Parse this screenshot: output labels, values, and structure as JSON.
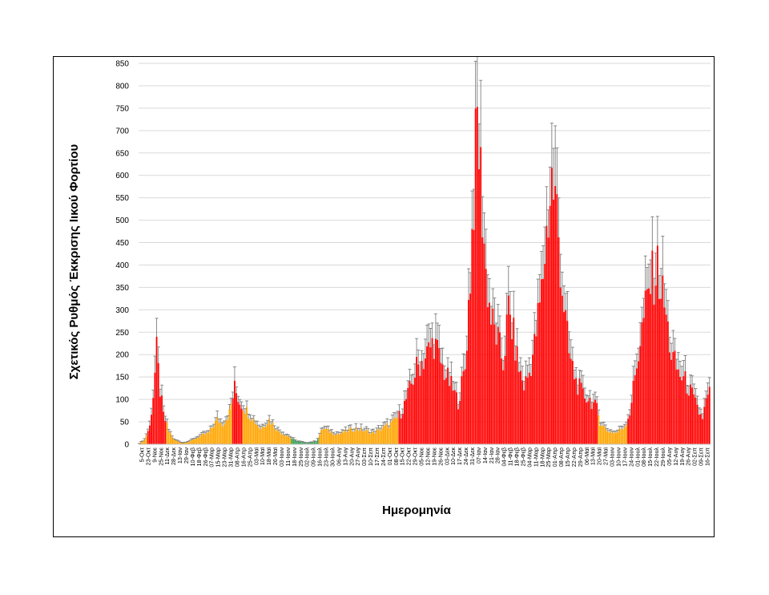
{
  "chart_data": {
    "type": "bar",
    "title": "",
    "ylabel": "Σχετικός Ρυθμός Έκκρισης Ιικού Φορτίου",
    "xlabel": "Ημερομηνία",
    "ylim": [
      0,
      850
    ],
    "y_ticks": [
      0,
      50,
      100,
      150,
      200,
      250,
      300,
      350,
      400,
      450,
      500,
      550,
      600,
      650,
      700,
      750,
      800,
      850
    ],
    "grid": "horizontal",
    "error_bars": true,
    "colors": {
      "red": "#ff0000",
      "orange": "#ffa500",
      "green": "#2e9e4f",
      "error": "#7f7f7f"
    },
    "x_tick_labels": [
      "5-Οκτ",
      "23-Οκτ",
      "9-Νοε",
      "25-Νοε",
      "11-Δεκ",
      "28-Δεκ",
      "13-Ιαν",
      "29-Ιαν",
      "10-Φεβ",
      "18-Φεβ",
      "26-Φεβ",
      "07-Μαρ",
      "15-Μαρ",
      "23-Μαρ",
      "31-Μαρ",
      "08-Απρ",
      "16-Απρ",
      "25-Απρ",
      "03-Μαϊ",
      "10-Μαϊ",
      "18-Μαϊ",
      "26-Μαϊ",
      "03-Ιουν",
      "11-Ιουν",
      "18-Ιουν",
      "25-Ιουν",
      "02-Ιουλ",
      "09-Ιουλ",
      "16-Ιουλ",
      "23-Ιουλ",
      "30-Ιουλ",
      "06-Αυγ",
      "13-Αυγ",
      "20-Αυγ",
      "27-Αυγ",
      "03-Σεπ",
      "10-Σεπ",
      "17-Σεπ",
      "24-Σεπ",
      "01-Οκτ",
      "08-Οκτ",
      "15-Οκτ",
      "22-Οκτ",
      "29-Οκτ",
      "05-Νοε",
      "12-Νοε",
      "19-Νοε",
      "26-Νοε",
      "03-Δεκ",
      "10-Δεκ",
      "17-Δεκ",
      "24-Δεκ",
      "31-Δεκ",
      "07-Ιαν",
      "14-Ιαν",
      "21-Ιαν",
      "28-Ιαν",
      "04-Φεβ",
      "11-Φεβ",
      "18-Φεβ",
      "25-Φεβ",
      "04-Μαρ",
      "11-Μαρ",
      "18-Μαρ",
      "25-Μαρ",
      "01-Απρ",
      "08-Απρ",
      "15-Απρ",
      "22-Απρ",
      "29-Απρ",
      "06-Μαϊ",
      "13-Μαϊ",
      "20-Μαϊ",
      "27-Μαϊ",
      "03-Ιουν",
      "10-Ιουν",
      "17-Ιουν",
      "24-Ιουν",
      "01-Ιουλ",
      "08-Ιουλ",
      "15-Ιουλ",
      "22-Ιουλ",
      "29-Ιουλ",
      "05-Αυγ",
      "12-Αυγ",
      "19-Αυγ",
      "26-Αυγ",
      "02-Σεπ",
      "09-Σεπ",
      "16-Σεπ"
    ],
    "series_profile": [
      {
        "x": 0,
        "y": 2,
        "c": "o"
      },
      {
        "x": 3,
        "y": 10,
        "c": "o"
      },
      {
        "x": 6,
        "y": 40,
        "c": "r"
      },
      {
        "x": 8,
        "y": 110,
        "c": "r"
      },
      {
        "x": 10,
        "y": 205,
        "c": "r"
      },
      {
        "x": 12,
        "y": 120,
        "c": "r"
      },
      {
        "x": 14,
        "y": 65,
        "c": "r"
      },
      {
        "x": 17,
        "y": 30,
        "c": "o"
      },
      {
        "x": 20,
        "y": 10,
        "c": "o"
      },
      {
        "x": 25,
        "y": 3,
        "c": "o"
      },
      {
        "x": 30,
        "y": 8,
        "c": "o"
      },
      {
        "x": 35,
        "y": 18,
        "c": "o"
      },
      {
        "x": 40,
        "y": 25,
        "c": "o"
      },
      {
        "x": 45,
        "y": 55,
        "c": "o"
      },
      {
        "x": 48,
        "y": 45,
        "c": "o"
      },
      {
        "x": 52,
        "y": 70,
        "c": "o"
      },
      {
        "x": 55,
        "y": 125,
        "c": "r"
      },
      {
        "x": 58,
        "y": 95,
        "c": "r"
      },
      {
        "x": 61,
        "y": 80,
        "c": "o"
      },
      {
        "x": 65,
        "y": 60,
        "c": "o"
      },
      {
        "x": 70,
        "y": 35,
        "c": "o"
      },
      {
        "x": 75,
        "y": 55,
        "c": "o"
      },
      {
        "x": 80,
        "y": 30,
        "c": "o"
      },
      {
        "x": 85,
        "y": 20,
        "c": "o"
      },
      {
        "x": 90,
        "y": 8,
        "c": "g"
      },
      {
        "x": 96,
        "y": 3,
        "c": "g"
      },
      {
        "x": 102,
        "y": 6,
        "c": "g"
      },
      {
        "x": 106,
        "y": 35,
        "c": "o"
      },
      {
        "x": 110,
        "y": 28,
        "c": "o"
      },
      {
        "x": 115,
        "y": 22,
        "c": "o"
      },
      {
        "x": 120,
        "y": 30,
        "c": "o"
      },
      {
        "x": 125,
        "y": 35,
        "c": "o"
      },
      {
        "x": 130,
        "y": 30,
        "c": "o"
      },
      {
        "x": 135,
        "y": 25,
        "c": "o"
      },
      {
        "x": 140,
        "y": 35,
        "c": "o"
      },
      {
        "x": 145,
        "y": 45,
        "c": "o"
      },
      {
        "x": 148,
        "y": 55,
        "c": "o"
      },
      {
        "x": 151,
        "y": 70,
        "c": "r"
      },
      {
        "x": 155,
        "y": 110,
        "c": "r"
      },
      {
        "x": 160,
        "y": 170,
        "c": "r"
      },
      {
        "x": 165,
        "y": 195,
        "c": "r"
      },
      {
        "x": 170,
        "y": 230,
        "c": "r"
      },
      {
        "x": 175,
        "y": 170,
        "c": "r"
      },
      {
        "x": 180,
        "y": 130,
        "c": "r"
      },
      {
        "x": 184,
        "y": 95,
        "c": "r"
      },
      {
        "x": 188,
        "y": 170,
        "c": "r"
      },
      {
        "x": 191,
        "y": 380,
        "c": "r"
      },
      {
        "x": 193,
        "y": 560,
        "c": "r"
      },
      {
        "x": 195,
        "y": 720,
        "c": "r"
      },
      {
        "x": 197,
        "y": 600,
        "c": "r"
      },
      {
        "x": 200,
        "y": 380,
        "c": "r"
      },
      {
        "x": 203,
        "y": 280,
        "c": "r"
      },
      {
        "x": 207,
        "y": 230,
        "c": "r"
      },
      {
        "x": 210,
        "y": 180,
        "c": "r"
      },
      {
        "x": 213,
        "y": 300,
        "c": "r"
      },
      {
        "x": 216,
        "y": 240,
        "c": "r"
      },
      {
        "x": 219,
        "y": 170,
        "c": "r"
      },
      {
        "x": 222,
        "y": 130,
        "c": "r"
      },
      {
        "x": 225,
        "y": 160,
        "c": "r"
      },
      {
        "x": 228,
        "y": 220,
        "c": "r"
      },
      {
        "x": 232,
        "y": 340,
        "c": "r"
      },
      {
        "x": 235,
        "y": 470,
        "c": "r"
      },
      {
        "x": 238,
        "y": 590,
        "c": "r"
      },
      {
        "x": 241,
        "y": 520,
        "c": "r"
      },
      {
        "x": 244,
        "y": 350,
        "c": "r"
      },
      {
        "x": 248,
        "y": 200,
        "c": "r"
      },
      {
        "x": 252,
        "y": 140,
        "c": "r"
      },
      {
        "x": 256,
        "y": 110,
        "c": "r"
      },
      {
        "x": 260,
        "y": 100,
        "c": "r"
      },
      {
        "x": 264,
        "y": 80,
        "c": "r"
      },
      {
        "x": 266,
        "y": 50,
        "c": "o"
      },
      {
        "x": 270,
        "y": 30,
        "c": "o"
      },
      {
        "x": 275,
        "y": 25,
        "c": "o"
      },
      {
        "x": 280,
        "y": 40,
        "c": "o"
      },
      {
        "x": 283,
        "y": 70,
        "c": "r"
      },
      {
        "x": 287,
        "y": 180,
        "c": "r"
      },
      {
        "x": 291,
        "y": 280,
        "c": "r"
      },
      {
        "x": 295,
        "y": 360,
        "c": "r"
      },
      {
        "x": 299,
        "y": 390,
        "c": "r"
      },
      {
        "x": 303,
        "y": 310,
        "c": "r"
      },
      {
        "x": 307,
        "y": 200,
        "c": "r"
      },
      {
        "x": 311,
        "y": 160,
        "c": "r"
      },
      {
        "x": 315,
        "y": 140,
        "c": "r"
      },
      {
        "x": 319,
        "y": 110,
        "c": "r"
      },
      {
        "x": 323,
        "y": 70,
        "c": "r"
      },
      {
        "x": 325,
        "y": 60,
        "c": "r"
      },
      {
        "x": 327,
        "y": 95,
        "c": "r"
      },
      {
        "x": 329,
        "y": 115,
        "c": "r"
      }
    ],
    "n_bars": 330
  }
}
